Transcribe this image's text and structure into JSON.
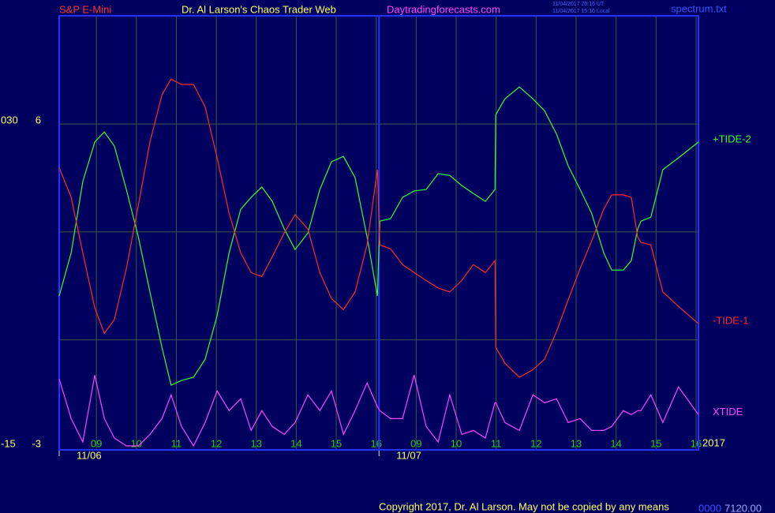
{
  "header": {
    "instrument": "S&P E-Mini",
    "site_title": "Dr. Al Larson's Chaos Trader Web",
    "site_url": "Daytradingforecasts.com",
    "time_ut": "11/04/2017 20:16 UT",
    "time_local": "11/04/2017 15:16 Local",
    "file_name": "spectrum.txt"
  },
  "footer": {
    "copyright": "Copyright 2017, Dr. Al Larson. May not be copied by any means",
    "status_code": "0000",
    "price": "7120.00"
  },
  "chart_data": {
    "type": "line",
    "x": [
      -0.93,
      -0.63,
      -0.34,
      -0.04,
      0.2,
      0.45,
      0.75,
      1.05,
      1.34,
      1.64,
      1.87,
      2.13,
      2.43,
      2.72,
      3.02,
      3.32,
      3.61,
      3.87,
      4.14,
      4.4,
      4.7,
      4.97,
      5.29,
      5.59,
      5.88,
      6.18,
      6.47,
      6.77,
      7.03,
      7.09,
      7.36,
      7.66,
      7.95,
      8.25,
      8.55,
      8.84,
      9.14,
      9.43,
      9.73,
      9.97,
      9.99,
      10.22,
      10.58,
      10.92,
      11.21,
      11.51,
      11.8,
      12.1,
      12.39,
      12.69,
      12.89,
      13.18,
      13.38,
      13.54,
      13.62,
      13.87,
      14.17,
      14.56,
      15.06
    ],
    "series": [
      {
        "name": "+TIDE-2",
        "color": "#33ff33",
        "values": [
          1.22,
          2.42,
          4.4,
          5.5,
          5.78,
          5.39,
          4.18,
          2.86,
          1.33,
          -0.21,
          -1.26,
          -1.13,
          -1.04,
          -0.54,
          0.67,
          2.42,
          3.63,
          3.96,
          4.25,
          3.85,
          3.08,
          2.51,
          2.97,
          4.18,
          4.95,
          5.1,
          4.51,
          2.86,
          1.22,
          3.3,
          3.37,
          3.96,
          4.14,
          4.18,
          4.62,
          4.57,
          4.29,
          4.07,
          3.85,
          4.18,
          6.26,
          6.7,
          7.03,
          6.7,
          6.37,
          5.72,
          4.84,
          4.18,
          3.52,
          2.42,
          1.94,
          1.94,
          2.2,
          3.08,
          3.3,
          3.41,
          4.73,
          5.06,
          5.5
        ]
      },
      {
        "name": "-TIDE-1",
        "color": "#ff2a2a",
        "values": [
          4.79,
          3.96,
          2.42,
          0.89,
          0.18,
          0.56,
          1.98,
          3.74,
          5.5,
          6.81,
          7.25,
          7.1,
          7.1,
          6.48,
          5.06,
          3.52,
          2.42,
          1.87,
          1.76,
          2.31,
          2.97,
          3.48,
          3.08,
          1.87,
          1.15,
          0.84,
          1.33,
          2.64,
          4.73,
          2.64,
          2.53,
          2.09,
          1.87,
          1.65,
          1.44,
          1.33,
          1.65,
          2.09,
          1.87,
          2.2,
          -0.21,
          -0.65,
          -1.04,
          -0.83,
          -0.54,
          0.23,
          1.11,
          1.98,
          2.75,
          3.63,
          4.03,
          4.03,
          3.96,
          2.86,
          2.71,
          2.64,
          1.33,
          0.93,
          0.45
        ]
      },
      {
        "name": "XTIDE",
        "color": "#ff44ff",
        "values": [
          -1.09,
          -2.19,
          -2.84,
          -0.98,
          -2.19,
          -2.73,
          -2.95,
          -2.95,
          -2.63,
          -2.19,
          -1.53,
          -2.41,
          -2.95,
          -2.3,
          -1.42,
          -1.97,
          -1.64,
          -2.52,
          -1.97,
          -2.41,
          -2.63,
          -2.3,
          -1.53,
          -1.97,
          -1.42,
          -2.63,
          -1.97,
          -1.2,
          -1.86,
          -1.97,
          -2.19,
          -2.19,
          -0.98,
          -2.41,
          -2.84,
          -1.53,
          -2.63,
          -2.52,
          -2.73,
          -1.75,
          -1.75,
          -2.3,
          -2.52,
          -1.53,
          -1.75,
          -1.64,
          -2.3,
          -2.19,
          -2.52,
          -2.52,
          -2.41,
          -1.97,
          -2.08,
          -1.97,
          -1.97,
          -1.53,
          -2.3,
          -1.31,
          -2.08
        ]
      }
    ],
    "xlim": [
      -0.93,
      15.06
    ],
    "xticks": [
      {
        "value": 0,
        "label": "09"
      },
      {
        "value": 1,
        "label": "10"
      },
      {
        "value": 2,
        "label": "11"
      },
      {
        "value": 3,
        "label": "12"
      },
      {
        "value": 4,
        "label": "13"
      },
      {
        "value": 5,
        "label": "14"
      },
      {
        "value": 6,
        "label": "15"
      },
      {
        "value": 7,
        "label": "16"
      },
      {
        "value": 8,
        "label": "09"
      },
      {
        "value": 9,
        "label": "10"
      },
      {
        "value": 10,
        "label": "11"
      },
      {
        "value": 11,
        "label": "12"
      },
      {
        "value": 12,
        "label": "13"
      },
      {
        "value": 13,
        "label": "14"
      },
      {
        "value": 14,
        "label": "15"
      },
      {
        "value": 15,
        "label": "16"
      }
    ],
    "date_ticks": [
      {
        "value": -0.93,
        "label": "11/06"
      },
      {
        "value": 7.07,
        "label": "11/07"
      }
    ],
    "session_breaks": [
      7.07
    ],
    "year_label": "2017",
    "ylim": [
      -3.06,
      9.01
    ],
    "yticks": [
      6,
      -3
    ],
    "ygrid": [
      0,
      3,
      6
    ],
    "y2lim": [
      -15.3,
      45.05
    ],
    "y2ticks": [
      {
        "value": 30,
        "label": "030"
      },
      -15
    ],
    "grid": true
  }
}
